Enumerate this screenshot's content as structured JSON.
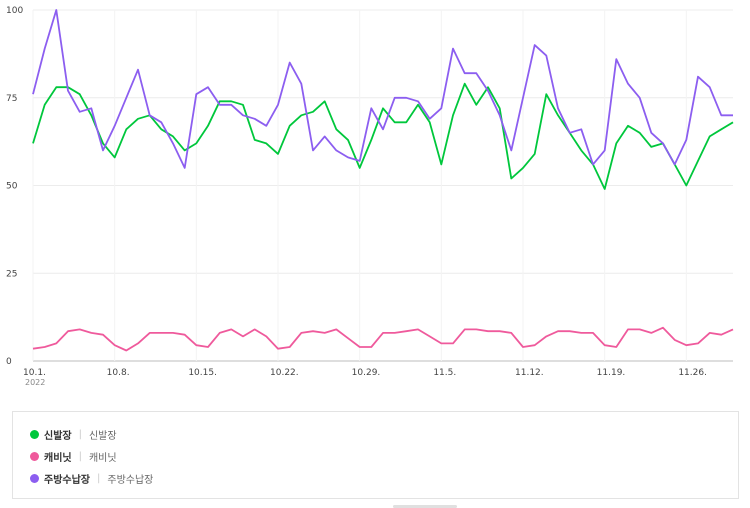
{
  "chart_data": {
    "type": "line",
    "ylim": [
      0,
      100
    ],
    "y_ticks": [
      "0",
      "25",
      "50",
      "75",
      "100"
    ],
    "x_tick_labels": [
      "10.1.",
      "10.8.",
      "10.15.",
      "10.22.",
      "10.29.",
      "11.5.",
      "11.12.",
      "11.19.",
      "11.26."
    ],
    "x_sublabel": "2022",
    "grid": true,
    "legend_position": "bottom",
    "x": [
      "2022-10-01",
      "2022-10-02",
      "2022-10-03",
      "2022-10-04",
      "2022-10-05",
      "2022-10-06",
      "2022-10-07",
      "2022-10-08",
      "2022-10-09",
      "2022-10-10",
      "2022-10-11",
      "2022-10-12",
      "2022-10-13",
      "2022-10-14",
      "2022-10-15",
      "2022-10-16",
      "2022-10-17",
      "2022-10-18",
      "2022-10-19",
      "2022-10-20",
      "2022-10-21",
      "2022-10-22",
      "2022-10-23",
      "2022-10-24",
      "2022-10-25",
      "2022-10-26",
      "2022-10-27",
      "2022-10-28",
      "2022-10-29",
      "2022-10-30",
      "2022-10-31",
      "2022-11-01",
      "2022-11-02",
      "2022-11-03",
      "2022-11-04",
      "2022-11-05",
      "2022-11-06",
      "2022-11-07",
      "2022-11-08",
      "2022-11-09",
      "2022-11-10",
      "2022-11-11",
      "2022-11-12",
      "2022-11-13",
      "2022-11-14",
      "2022-11-15",
      "2022-11-16",
      "2022-11-17",
      "2022-11-18",
      "2022-11-19",
      "2022-11-20",
      "2022-11-21",
      "2022-11-22",
      "2022-11-23",
      "2022-11-24",
      "2022-11-25",
      "2022-11-26",
      "2022-11-27",
      "2022-11-28",
      "2022-11-29",
      "2022-11-30"
    ],
    "series": [
      {
        "name": "신발장",
        "color": "#00c73c",
        "values": [
          62,
          73,
          78,
          78,
          76,
          70,
          62,
          58,
          66,
          69,
          70,
          66,
          64,
          60,
          62,
          67,
          74,
          74,
          73,
          63,
          62,
          59,
          67,
          70,
          71,
          74,
          66,
          63,
          55,
          63,
          72,
          68,
          68,
          73,
          68,
          56,
          70,
          79,
          73,
          78,
          72,
          52,
          55,
          59,
          76,
          70,
          65,
          60,
          56,
          49,
          62,
          67,
          65,
          61,
          62,
          56,
          50,
          57,
          64,
          66,
          68
        ]
      },
      {
        "name": "캐비닛",
        "color": "#ef5a9c",
        "values": [
          3.5,
          4,
          5,
          8.5,
          9,
          8,
          7.5,
          4.5,
          3,
          5,
          8,
          8,
          8,
          7.5,
          4.5,
          4,
          8,
          9,
          7,
          9,
          7,
          3.5,
          4,
          8,
          8.5,
          8,
          9,
          6.5,
          4,
          4,
          8,
          8,
          8.5,
          9,
          7,
          5,
          5,
          9,
          9,
          8.5,
          8.5,
          8,
          4,
          4.5,
          7,
          8.5,
          8.5,
          8,
          8,
          4.5,
          4,
          9,
          9,
          8,
          9.5,
          6,
          4.5,
          5,
          8,
          7.5,
          9
        ]
      },
      {
        "name": "주방수납장",
        "color": "#8c5ef0",
        "values": [
          76,
          89,
          100,
          77,
          71,
          72,
          60,
          67,
          75,
          83,
          70,
          68,
          62,
          55,
          76,
          78,
          73,
          73,
          70,
          69,
          67,
          73,
          85,
          79,
          60,
          64,
          60,
          58,
          57,
          72,
          66,
          75,
          75,
          74,
          69,
          72,
          89,
          82,
          82,
          77,
          70,
          60,
          75,
          90,
          87,
          72,
          65,
          66,
          56,
          60,
          86,
          79,
          75,
          65,
          62,
          56,
          63,
          81,
          78,
          70,
          70
        ]
      }
    ]
  },
  "legend": [
    {
      "name": "신발장",
      "sub": "신발장",
      "color": "#00c73c"
    },
    {
      "name": "캐비닛",
      "sub": "캐비닛",
      "color": "#ef5a9c"
    },
    {
      "name": "주방수납장",
      "sub": "주방수납장",
      "color": "#8c5ef0"
    }
  ],
  "legend_separator": "|"
}
